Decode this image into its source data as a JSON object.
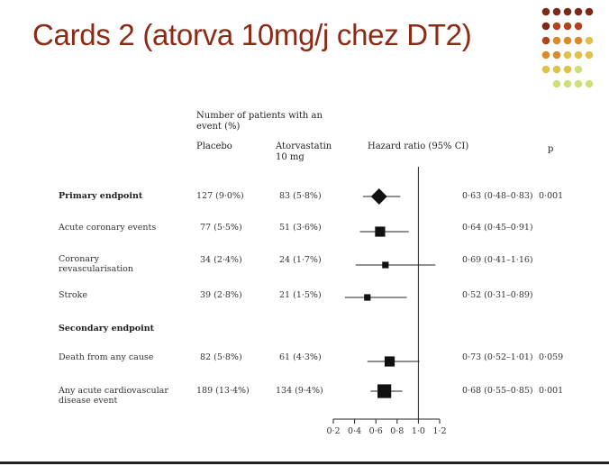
{
  "title": "Cards 2 (atorva 10mg/j chez DT2)",
  "colors": {
    "title": "#8b2b16",
    "dots": [
      "#7a2a16",
      "#b0431b",
      "#d98a2a",
      "#e0c04a",
      "#cfe07a"
    ]
  },
  "headers": {
    "n_patients": "Number of patients with an event (%)",
    "placebo": "Placebo",
    "atorvastatin": "Atorvastatin 10 mg",
    "hazard_ratio": "Hazard ratio (95% CI)",
    "p": "p"
  },
  "chart_data": {
    "type": "forest",
    "title": "",
    "xlabel": "",
    "xlim": [
      0.2,
      1.2
    ],
    "xticks": [
      "0·2",
      "0·4",
      "0·6",
      "0·8",
      "1·0",
      "1·2"
    ],
    "reference_line": 1.0,
    "rows": [
      {
        "label": "Primary endpoint",
        "bold": true,
        "placebo": "127 (9·0%)",
        "atorva": "83 (5·8%)",
        "hr": 0.63,
        "lo": 0.48,
        "hi": 0.83,
        "ci_text": "0·63 (0·48–0·83)",
        "p": "0·001",
        "marker": "diamond"
      },
      {
        "label": "Acute coronary events",
        "placebo": "77 (5·5%)",
        "atorva": "51 (3·6%)",
        "hr": 0.64,
        "lo": 0.45,
        "hi": 0.91,
        "ci_text": "0·64 (0·45–0·91)",
        "p": "",
        "marker": "square",
        "weight": 1.4
      },
      {
        "label": "Coronary revascularisation",
        "placebo": "34 (2·4%)",
        "atorva": "24 (1·7%)",
        "hr": 0.69,
        "lo": 0.41,
        "hi": 1.16,
        "ci_text": "0·69 (0·41–1·16)",
        "p": "",
        "marker": "square",
        "weight": 0.9
      },
      {
        "label": "Stroke",
        "placebo": "39 (2·8%)",
        "atorva": "21 (1·5%)",
        "hr": 0.52,
        "lo": 0.31,
        "hi": 0.89,
        "ci_text": "0·52 (0·31–0·89)",
        "p": "",
        "marker": "square",
        "weight": 0.9
      },
      {
        "label": "Secondary endpoint",
        "bold": true,
        "section": true
      },
      {
        "label": "Death from any cause",
        "placebo": "82 (5·8%)",
        "atorva": "61 (4·3%)",
        "hr": 0.73,
        "lo": 0.52,
        "hi": 1.01,
        "ci_text": "0·73 (0·52–1·01)",
        "p": "0·059",
        "marker": "square",
        "weight": 1.4
      },
      {
        "label": "Any acute cardiovascular disease event",
        "placebo": "189 (13·4%)",
        "atorva": "134 (9·4%)",
        "hr": 0.68,
        "lo": 0.55,
        "hi": 0.85,
        "ci_text": "0·68 (0·55–0·85)",
        "p": "0·001",
        "marker": "square",
        "weight": 1.9
      }
    ]
  }
}
